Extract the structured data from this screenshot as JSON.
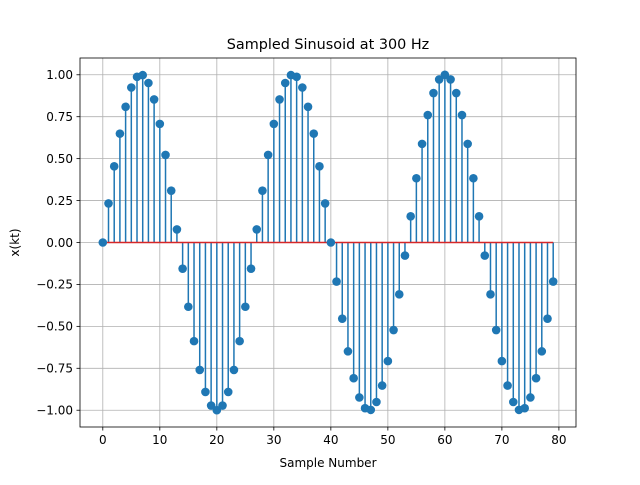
{
  "chart_data": {
    "type": "stem",
    "title": "Sampled Sinusoid at 300 Hz",
    "xlabel": "Sample Number",
    "ylabel": "x(kt)",
    "xlim": [
      -4,
      83
    ],
    "ylim": [
      -1.1,
      1.1
    ],
    "xticks": [
      0,
      10,
      20,
      30,
      40,
      50,
      60,
      70,
      80
    ],
    "xtick_labels": [
      "0",
      "10",
      "20",
      "30",
      "40",
      "50",
      "60",
      "70",
      "80"
    ],
    "yticks": [
      -1.0,
      -0.75,
      -0.5,
      -0.25,
      0.0,
      0.25,
      0.5,
      0.75,
      1.0
    ],
    "ytick_labels": [
      "−1.00",
      "−0.75",
      "−0.50",
      "−0.25",
      "0.00",
      "0.25",
      "0.50",
      "0.75",
      "1.00"
    ],
    "grid": true,
    "series": [
      {
        "x": [
          0,
          1,
          2,
          3,
          4,
          5,
          6,
          7,
          8,
          9,
          10,
          11,
          12,
          13,
          14,
          15,
          16,
          17,
          18,
          19,
          20,
          21,
          22,
          23,
          24,
          25,
          26,
          27,
          28,
          29,
          30,
          31,
          32,
          33,
          34,
          35,
          36,
          37,
          38,
          39,
          40,
          41,
          42,
          43,
          44,
          45,
          46,
          47,
          48,
          49,
          50,
          51,
          52,
          53,
          54,
          55,
          56,
          57,
          58,
          59,
          60,
          61,
          62,
          63,
          64,
          65,
          66,
          67,
          68,
          69,
          70,
          71,
          72,
          73,
          74,
          75,
          76,
          77,
          78,
          79
        ],
        "y": [
          0.0,
          0.233,
          0.454,
          0.649,
          0.809,
          0.924,
          0.988,
          0.998,
          0.951,
          0.853,
          0.707,
          0.522,
          0.309,
          0.078,
          -0.156,
          -0.383,
          -0.588,
          -0.76,
          -0.891,
          -0.972,
          -1.0,
          -0.972,
          -0.891,
          -0.76,
          -0.588,
          -0.383,
          -0.156,
          0.078,
          0.309,
          0.522,
          0.707,
          0.853,
          0.951,
          0.998,
          0.988,
          0.924,
          0.809,
          0.649,
          0.454,
          0.233,
          0.0,
          -0.233,
          -0.454,
          -0.649,
          -0.809,
          -0.924,
          -0.988,
          -0.998,
          -0.951,
          -0.853,
          -0.707,
          -0.522,
          -0.309,
          -0.078,
          0.156,
          0.383,
          0.588,
          0.76,
          0.891,
          0.972,
          1.0,
          0.972,
          0.891,
          0.76,
          0.588,
          0.383,
          0.156,
          -0.078,
          -0.309,
          -0.522,
          -0.707,
          -0.853,
          -0.951,
          -0.998,
          -0.988,
          -0.924,
          -0.809,
          -0.649,
          -0.454,
          -0.233
        ]
      }
    ],
    "colors": {
      "stem": "#1f77b4",
      "marker": "#1f77b4",
      "baseline": "#d62728",
      "grid": "#b0b0b0",
      "axes": "#000000"
    }
  }
}
